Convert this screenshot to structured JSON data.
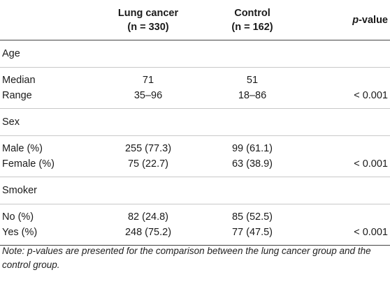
{
  "table": {
    "headers": {
      "col1_line1": "Lung cancer",
      "col1_line2": "(n = 330)",
      "col2_line1": "Control",
      "col2_line2": "(n = 162)",
      "col3_p": "p",
      "col3_rest": "-value"
    },
    "groups": [
      {
        "title": "Age",
        "rows": [
          {
            "label": "Median",
            "lung": "71",
            "control": "51",
            "p": ""
          },
          {
            "label": "Range",
            "lung": "35–96",
            "control": "18–86",
            "p": "< 0.001"
          }
        ]
      },
      {
        "title": "Sex",
        "rows": [
          {
            "label": "Male (%)",
            "lung": "255 (77.3)",
            "control": "99 (61.1)",
            "p": ""
          },
          {
            "label": "Female (%)",
            "lung": "75 (22.7)",
            "control": "63 (38.9)",
            "p": "< 0.001"
          }
        ]
      },
      {
        "title": "Smoker",
        "rows": [
          {
            "label": "No (%)",
            "lung": "82 (24.8)",
            "control": "85 (52.5)",
            "p": ""
          },
          {
            "label": "Yes (%)",
            "lung": "248 (75.2)",
            "control": "77 (47.5)",
            "p": "< 0.001"
          }
        ]
      }
    ]
  },
  "note": {
    "text": "Note: p-values are presented for the comparison between the lung cancer group and the control group."
  }
}
